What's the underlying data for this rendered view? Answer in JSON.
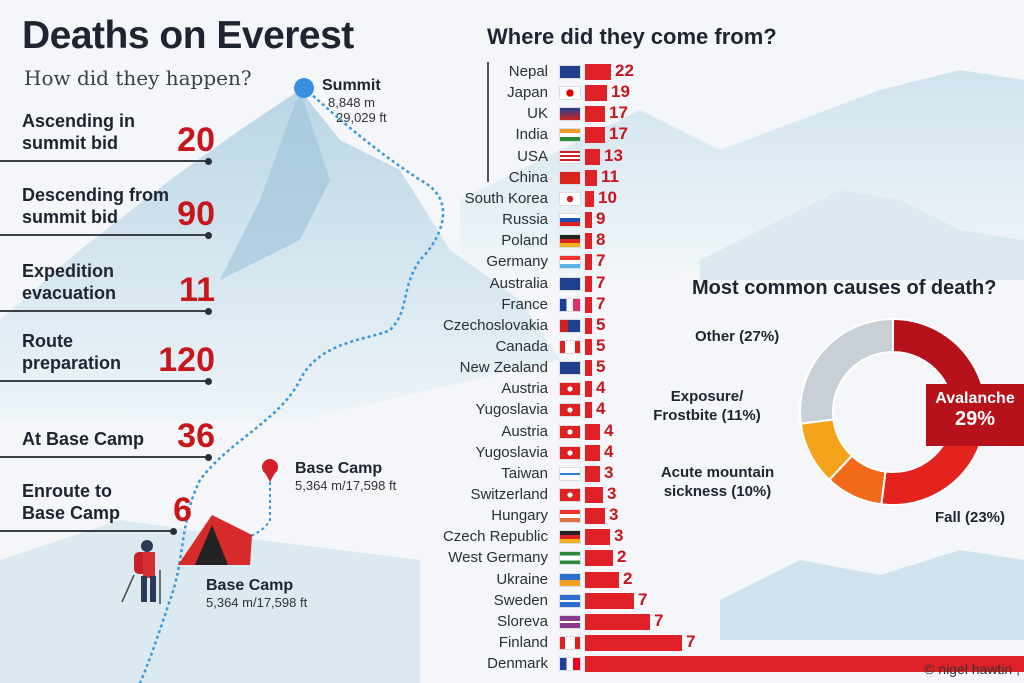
{
  "title": "Deaths on Everest",
  "subtitle": "How did they happen?",
  "stages": [
    {
      "label": "Ascending in summit bid",
      "value": "20"
    },
    {
      "label": "Descending from summit bid",
      "value": "90"
    },
    {
      "label": "Expedition evacuation",
      "value": "11"
    },
    {
      "label": "Route preparation",
      "value": "120"
    },
    {
      "label": "At Base Camp",
      "value": "36"
    },
    {
      "label": "Enroute to Base Camp",
      "value": "6"
    }
  ],
  "places": {
    "summit": {
      "name": "Summit",
      "m": "8,848 m",
      "ft": "29,029 ft"
    },
    "base_camp_pin": {
      "name": "Base Camp",
      "elev": "5,364 m/17,598 ft"
    },
    "base_camp_tent": {
      "name": "Base Camp",
      "elev": "5,364 m/17,598 ft"
    }
  },
  "colors": {
    "accent_red": "#c8161d",
    "bar_red": "#e02228",
    "route_blue": "#3a9ad9"
  },
  "chart_data": [
    {
      "type": "bar",
      "orientation": "horizontal",
      "title": "Where did they come from?",
      "categories": [
        "Nepal",
        "Japan",
        "UK",
        "India",
        "USA",
        "China",
        "South Korea",
        "Russia",
        "Poland",
        "Germany",
        "Australia",
        "France",
        "Czechoslovakia",
        "Canada",
        "New Zealand",
        "Austria",
        "Yugoslavia",
        "Austria",
        "Yugoslavia",
        "Taiwan",
        "Switzerland",
        "Hungary",
        "Czech Republic",
        "West Germany",
        "Ukraine",
        "Sweden",
        "Sloreva",
        "Finland",
        "Denmark"
      ],
      "values": [
        22,
        19,
        17,
        17,
        13,
        11,
        10,
        9,
        8,
        7,
        7,
        7,
        5,
        5,
        5,
        4,
        4,
        4,
        4,
        3,
        3,
        3,
        3,
        2,
        2,
        7,
        7,
        7,
        null
      ],
      "value_labels": [
        "22",
        "19",
        "17",
        "17",
        "13",
        "11",
        "10",
        "9",
        "8",
        "7",
        "7",
        "7",
        "5",
        "5",
        "5",
        "4",
        "4",
        "4",
        "4",
        "3",
        "3",
        "3",
        "3",
        "2",
        "2",
        "7",
        "7",
        "7",
        ""
      ]
    },
    {
      "type": "pie",
      "donut": true,
      "title": "Most common causes of death?",
      "slices": [
        {
          "label": "Avalanche",
          "value": 29,
          "value_label": "29%",
          "color": "#b5121b"
        },
        {
          "label": "Fall (23%)",
          "value": 23,
          "color": "#e3231e"
        },
        {
          "label": "Acute mountain sickness (10%)",
          "value": 10,
          "color": "#f06a1a"
        },
        {
          "label": "Exposure/ Frostbite (11%)",
          "value": 11,
          "color": "#f5a31a"
        },
        {
          "label": "Other (27%)",
          "value": 27,
          "color": "#c9cfd6"
        }
      ]
    }
  ],
  "credit": "© nigel hawtin ,"
}
